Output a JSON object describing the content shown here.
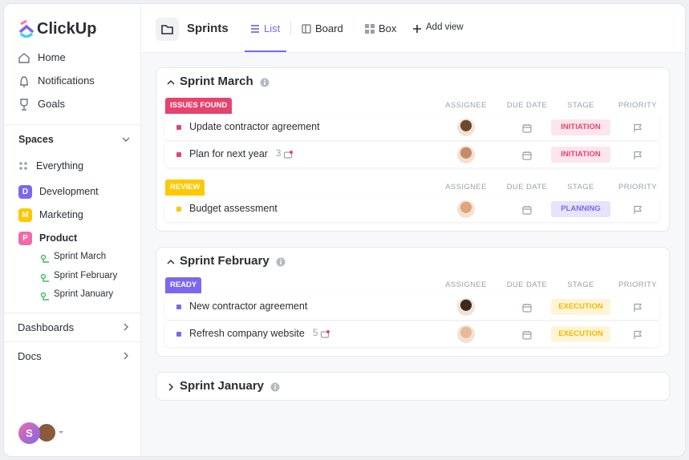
{
  "sidebar": {
    "logo": "ClickUp",
    "nav": [
      "Home",
      "Notifications",
      "Goals"
    ],
    "spaces_title": "Spaces",
    "everything": "Everything",
    "spaces": [
      {
        "badge": "D",
        "name": "Development",
        "color": "#7b68ee"
      },
      {
        "badge": "M",
        "name": "Marketing",
        "color": "#ffc800"
      },
      {
        "badge": "P",
        "name": "Product",
        "color": "#f06aa8"
      }
    ],
    "lists": [
      "Sprint March",
      "Sprint February",
      "Sprint January"
    ],
    "dashboards": "Dashboards",
    "docs": "Docs",
    "avatar": "S"
  },
  "header": {
    "title": "Sprints",
    "views": [
      "List",
      "Board",
      "Box"
    ],
    "add_view": "Add view"
  },
  "columns": [
    "ASSIGNEE",
    "DUE DATE",
    "STAGE",
    "PRIORITY"
  ],
  "sprints": [
    {
      "name": "Sprint March",
      "groups": [
        {
          "status": "ISSUES FOUND",
          "color": "#e7436f",
          "tasks": [
            {
              "name": "Update contractor agreement",
              "stage": "INITIATION",
              "stage_color": "#e7436f",
              "stage_bg": "#fde5ec"
            },
            {
              "name": "Plan for next year",
              "count": 3,
              "stage": "INITIATION",
              "stage_color": "#e7436f",
              "stage_bg": "#fde5ec"
            }
          ]
        },
        {
          "status": "REVIEW",
          "color": "#ffc800",
          "tasks": [
            {
              "name": "Budget assessment",
              "stage": "PLANNING",
              "stage_color": "#7b68ee",
              "stage_bg": "#e6e3fc"
            }
          ]
        }
      ]
    },
    {
      "name": "Sprint February",
      "groups": [
        {
          "status": "READY",
          "color": "#7b68ee",
          "tasks": [
            {
              "name": "New contractor agreement",
              "stage": "EXECUTION",
              "stage_color": "#f2b800",
              "stage_bg": "#fff5d6"
            },
            {
              "name": "Refresh company website",
              "count": 5,
              "stage": "EXECUTION",
              "stage_color": "#f2b800",
              "stage_bg": "#fff5d6"
            }
          ]
        }
      ]
    },
    {
      "name": "Sprint January",
      "collapsed": true
    }
  ]
}
